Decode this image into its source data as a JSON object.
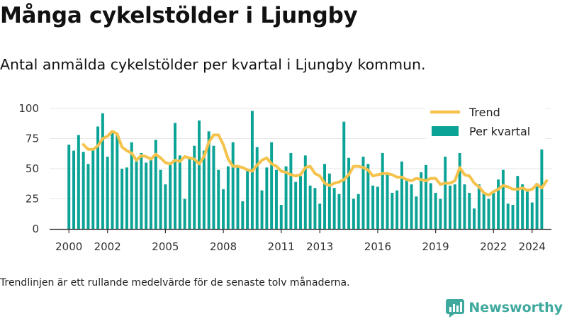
{
  "header": {
    "title": "Många cykelstölder i Ljungby",
    "subtitle": "Antal anmälda cykelstölder per kvartal i Ljungby kommun."
  },
  "footer": {
    "note": "Trendlinjen är ett rullande medelvärde för de senaste tolv månaderna.",
    "brand": "Newsworthy"
  },
  "colors": {
    "bars": "#0aa395",
    "trend": "#f5c24c",
    "grid": "#e6e6e6",
    "axis": "#333333",
    "brand": "#3fa99e"
  },
  "chart_data": {
    "type": "bar",
    "title": "",
    "xlabel": "",
    "ylabel": "",
    "ylim": [
      0,
      100
    ],
    "y_ticks": [
      "0",
      "25",
      "50",
      "75",
      "100"
    ],
    "x_ticks": [
      "2000",
      "2002",
      "2005",
      "2008",
      "2011",
      "2013",
      "2016",
      "2019",
      "2022",
      "2024"
    ],
    "x_tick_positions": [
      2000,
      2002,
      2005,
      2008,
      2011,
      2013,
      2016,
      2019,
      2022,
      2024
    ],
    "xlim": [
      1999,
      2025
    ],
    "grid": true,
    "legend_position": "top-right",
    "series": [
      {
        "name": "Per kvartal",
        "type": "bar",
        "start_year": 2000,
        "periods_per_year": 4,
        "values": [
          70,
          65,
          78,
          64,
          54,
          67,
          85,
          96,
          60,
          80,
          78,
          50,
          51,
          72,
          56,
          63,
          55,
          59,
          74,
          49,
          37,
          55,
          88,
          61,
          25,
          59,
          69,
          90,
          65,
          81,
          69,
          49,
          33,
          52,
          72,
          51,
          23,
          50,
          98,
          68,
          32,
          51,
          72,
          49,
          20,
          52,
          63,
          39,
          44,
          61,
          36,
          34,
          21,
          54,
          46,
          34,
          29,
          89,
          59,
          25,
          29,
          60,
          54,
          36,
          35,
          63,
          45,
          30,
          32,
          56,
          41,
          37,
          27,
          47,
          53,
          38,
          30,
          25,
          60,
          36,
          37,
          63,
          37,
          30,
          17,
          37,
          30,
          25,
          30,
          41,
          49,
          21,
          20,
          44,
          37,
          31,
          22,
          38,
          66
        ]
      },
      {
        "name": "Trend",
        "type": "line",
        "start_year": 2000.75,
        "periods_per_year": 4,
        "values": [
          70,
          66,
          66,
          69,
          75,
          77,
          81,
          79,
          68,
          65,
          63,
          57,
          61,
          60,
          58,
          62,
          59,
          55,
          54,
          57,
          56,
          60,
          59,
          58,
          54,
          60,
          72,
          78,
          78,
          70,
          58,
          52,
          52,
          51,
          49,
          48,
          53,
          57,
          59,
          54,
          52,
          48,
          47,
          45,
          44,
          45,
          51,
          52,
          46,
          44,
          38,
          36,
          38,
          39,
          41,
          45,
          52,
          52,
          51,
          49,
          44,
          45,
          46,
          46,
          45,
          43,
          43,
          41,
          40,
          42,
          41,
          40,
          42,
          42,
          37,
          38,
          38,
          40,
          51,
          45,
          44,
          38,
          35,
          30,
          28,
          31,
          33,
          36,
          35,
          33,
          33,
          34,
          32,
          33,
          37,
          34,
          40
        ]
      }
    ]
  }
}
